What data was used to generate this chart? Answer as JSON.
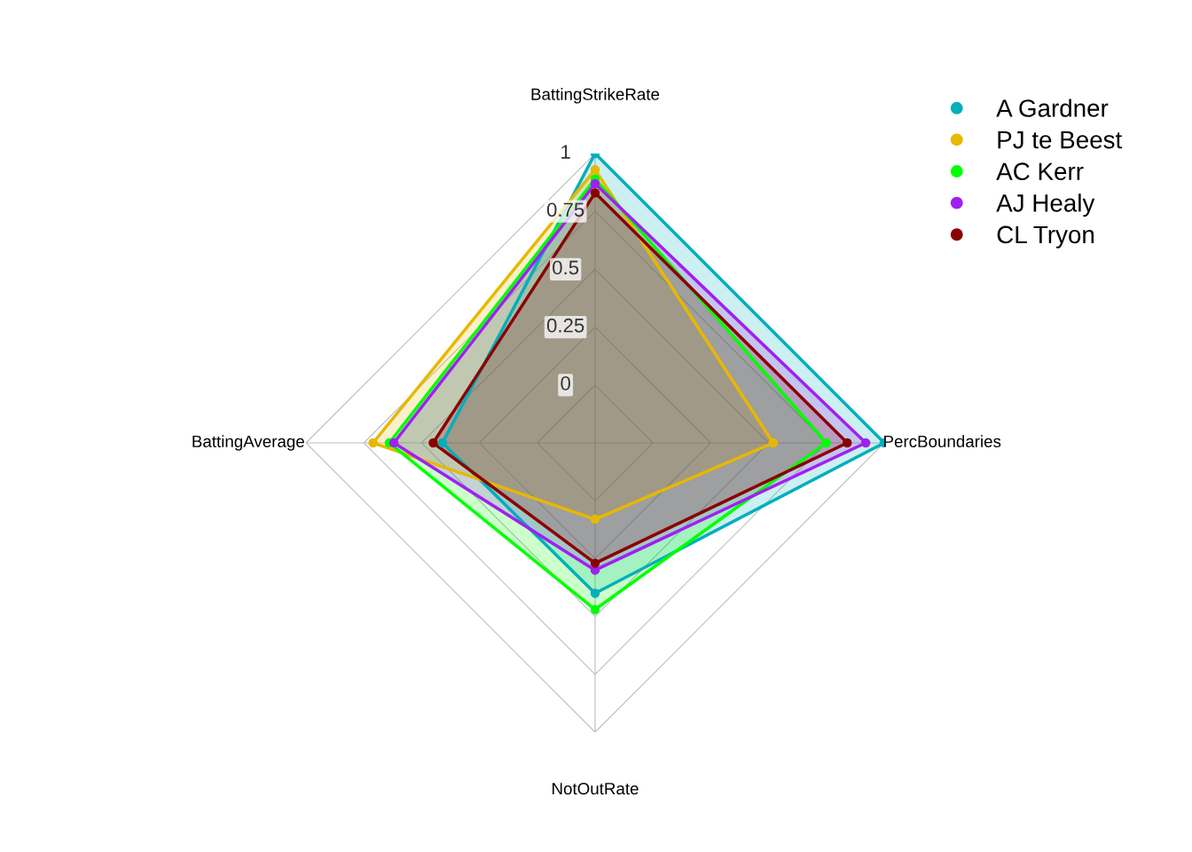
{
  "chart_data": {
    "type": "radar",
    "categories": [
      "BattingStrikeRate",
      "PercBoundaries",
      "NotOutRate",
      "BattingAverage"
    ],
    "series": [
      {
        "name": "A Gardner",
        "color": "#00afbb",
        "values": [
          1.0,
          1.0,
          0.4,
          0.41
        ]
      },
      {
        "name": "PJ te Beest",
        "color": "#e7b800",
        "values": [
          0.93,
          0.52,
          0.08,
          0.71
        ]
      },
      {
        "name": "AC Kerr",
        "color": "#00ff00",
        "values": [
          0.89,
          0.75,
          0.47,
          0.64
        ]
      },
      {
        "name": "AJ Healy",
        "color": "#a020f0",
        "values": [
          0.87,
          0.92,
          0.3,
          0.62
        ]
      },
      {
        "name": "CL Tryon",
        "color": "#8b0000",
        "values": [
          0.83,
          0.84,
          0.27,
          0.45
        ]
      }
    ],
    "ylim": [
      -0.25,
      1
    ],
    "yticks": [
      0,
      0.25,
      0.5,
      0.75,
      1
    ],
    "grid": true,
    "legend": "top right",
    "marker": "circle",
    "line_style": "solid"
  }
}
